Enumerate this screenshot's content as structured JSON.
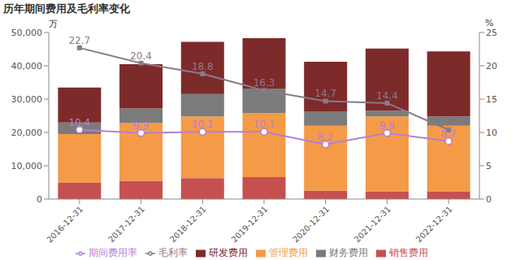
{
  "chart_data": {
    "type": "bar",
    "title": "历年期间费用及毛利率变化",
    "y_label": "万",
    "y2_label": "%",
    "categories": [
      "2016-12-31",
      "2017-12-31",
      "2018-12-31",
      "2019-12-31",
      "2020-12-31",
      "2021-12-31",
      "2022-12-31"
    ],
    "stacked": true,
    "legend": "bottom",
    "ylim": [
      0,
      50000
    ],
    "yticks": [
      0,
      {
        "value": 10000,
        "label": "10,000"
      },
      {
        "value": 20000,
        "label": "20,000"
      },
      {
        "value": 30000,
        "label": "30,000"
      },
      {
        "value": 40000,
        "label": "40,000"
      },
      {
        "value": 50000,
        "label": "50,000"
      }
    ],
    "y2lim": [
      0,
      25
    ],
    "y2ticks": [
      0,
      5,
      10,
      15,
      20,
      25
    ],
    "series": [
      {
        "name": "销售费用",
        "type": "bar",
        "color": "#c6504f",
        "values": [
          5000,
          5500,
          6300,
          6600,
          2500,
          2300,
          2200
        ]
      },
      {
        "name": "管理费用",
        "type": "bar",
        "color": "#f59a46",
        "values": [
          14500,
          17300,
          18500,
          19200,
          19500,
          22500,
          19800
        ]
      },
      {
        "name": "财务费用",
        "type": "bar",
        "color": "#7b7b7b",
        "values": [
          3500,
          4400,
          6700,
          7400,
          4200,
          1700,
          2800
        ]
      },
      {
        "name": "研发费用",
        "type": "bar",
        "color": "#7d2a2a",
        "values": [
          10500,
          13300,
          15700,
          15100,
          15000,
          18700,
          19500
        ]
      },
      {
        "name": "毛利率",
        "type": "line",
        "axis": "y2",
        "color": "#8a7a8a",
        "marker": "square",
        "data_labels": true,
        "values": [
          22.7,
          20.4,
          18.8,
          16.3,
          14.7,
          14.4,
          10.4
        ]
      },
      {
        "name": "期间费用率",
        "type": "line",
        "axis": "y2",
        "color": "#b57fd6",
        "marker": "circle",
        "data_labels": true,
        "values": [
          10.4,
          9.9,
          10.1,
          10.1,
          8.2,
          9.9,
          8.7
        ]
      }
    ]
  }
}
